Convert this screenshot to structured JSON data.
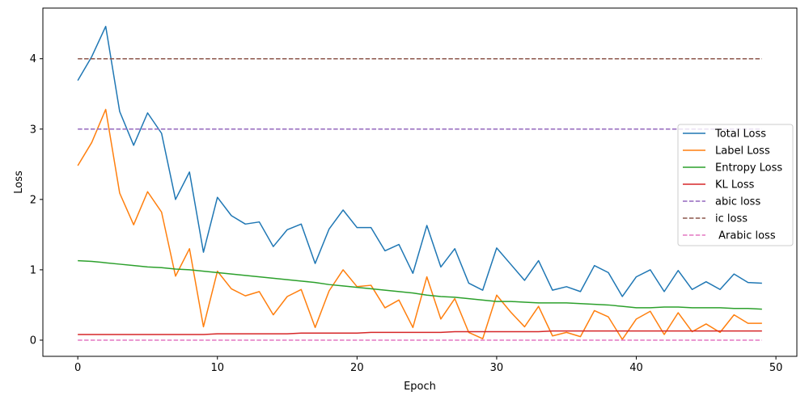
{
  "chart_data": {
    "type": "line",
    "xlabel": "Epoch",
    "ylabel": "Loss",
    "xlim": [
      -2.5,
      51.5
    ],
    "ylim": [
      -0.23,
      4.72
    ],
    "xticks": [
      "0",
      "10",
      "20",
      "30",
      "40",
      "50"
    ],
    "yticks": [
      "0",
      "1",
      "2",
      "3",
      "4"
    ],
    "legend_position": "center-right",
    "grid": false,
    "epochs": [
      0,
      1,
      2,
      3,
      4,
      5,
      6,
      7,
      8,
      9,
      10,
      11,
      12,
      13,
      14,
      15,
      16,
      17,
      18,
      19,
      20,
      21,
      22,
      23,
      24,
      25,
      26,
      27,
      28,
      29,
      30,
      31,
      32,
      33,
      34,
      35,
      36,
      37,
      38,
      39,
      40,
      41,
      42,
      43,
      44,
      45,
      46,
      47,
      48,
      49
    ],
    "series": [
      {
        "name": "Total Loss",
        "color": "#1f77b4",
        "style": "solid",
        "values": [
          3.69,
          4.03,
          4.46,
          3.25,
          2.77,
          3.23,
          2.94,
          2.0,
          2.39,
          1.25,
          2.03,
          1.77,
          1.65,
          1.68,
          1.33,
          1.57,
          1.65,
          1.09,
          1.58,
          1.85,
          1.6,
          1.6,
          1.27,
          1.36,
          0.95,
          1.63,
          1.04,
          1.3,
          0.81,
          0.71,
          1.31,
          1.08,
          0.85,
          1.13,
          0.71,
          0.76,
          0.69,
          1.06,
          0.96,
          0.62,
          0.9,
          1.0,
          0.69,
          0.99,
          0.72,
          0.83,
          0.72,
          0.94,
          0.82,
          0.81
        ]
      },
      {
        "name": "Label Loss",
        "color": "#ff7f0e",
        "style": "solid",
        "values": [
          2.48,
          2.81,
          3.28,
          2.09,
          1.64,
          2.11,
          1.82,
          0.91,
          1.3,
          0.19,
          0.98,
          0.73,
          0.63,
          0.69,
          0.36,
          0.62,
          0.72,
          0.18,
          0.7,
          1.0,
          0.76,
          0.78,
          0.46,
          0.57,
          0.18,
          0.9,
          0.3,
          0.59,
          0.11,
          0.02,
          0.64,
          0.4,
          0.19,
          0.48,
          0.06,
          0.11,
          0.05,
          0.42,
          0.33,
          0.01,
          0.3,
          0.41,
          0.08,
          0.39,
          0.12,
          0.23,
          0.11,
          0.36,
          0.24,
          0.24
        ]
      },
      {
        "name": "Entropy Loss",
        "color": "#2ca02c",
        "style": "solid",
        "values": [
          1.13,
          1.12,
          1.1,
          1.08,
          1.06,
          1.04,
          1.03,
          1.01,
          1.0,
          0.98,
          0.96,
          0.94,
          0.92,
          0.9,
          0.88,
          0.86,
          0.84,
          0.82,
          0.79,
          0.77,
          0.75,
          0.73,
          0.71,
          0.69,
          0.67,
          0.64,
          0.62,
          0.61,
          0.59,
          0.57,
          0.55,
          0.55,
          0.54,
          0.53,
          0.53,
          0.53,
          0.52,
          0.51,
          0.5,
          0.48,
          0.46,
          0.46,
          0.47,
          0.47,
          0.46,
          0.46,
          0.46,
          0.45,
          0.45,
          0.44
        ]
      },
      {
        "name": "KL Loss",
        "color": "#d62728",
        "style": "solid",
        "values": [
          0.08,
          0.08,
          0.08,
          0.08,
          0.08,
          0.08,
          0.08,
          0.08,
          0.08,
          0.08,
          0.09,
          0.09,
          0.09,
          0.09,
          0.09,
          0.09,
          0.1,
          0.1,
          0.1,
          0.1,
          0.1,
          0.11,
          0.11,
          0.11,
          0.11,
          0.11,
          0.11,
          0.12,
          0.12,
          0.12,
          0.12,
          0.12,
          0.12,
          0.12,
          0.13,
          0.13,
          0.13,
          0.13,
          0.13,
          0.13,
          0.13,
          0.13,
          0.13,
          0.13,
          0.13,
          0.13,
          0.13,
          0.13,
          0.13,
          0.13
        ]
      },
      {
        "name": "abic loss",
        "color": "#9467bd",
        "style": "dashed",
        "constant": 3.0
      },
      {
        "name": "ic loss",
        "color": "#8c564b",
        "style": "dashed",
        "constant": 4.0
      },
      {
        "name": " Arabic loss",
        "color": "#e377c2",
        "style": "dashed",
        "constant": 0.0
      }
    ]
  }
}
